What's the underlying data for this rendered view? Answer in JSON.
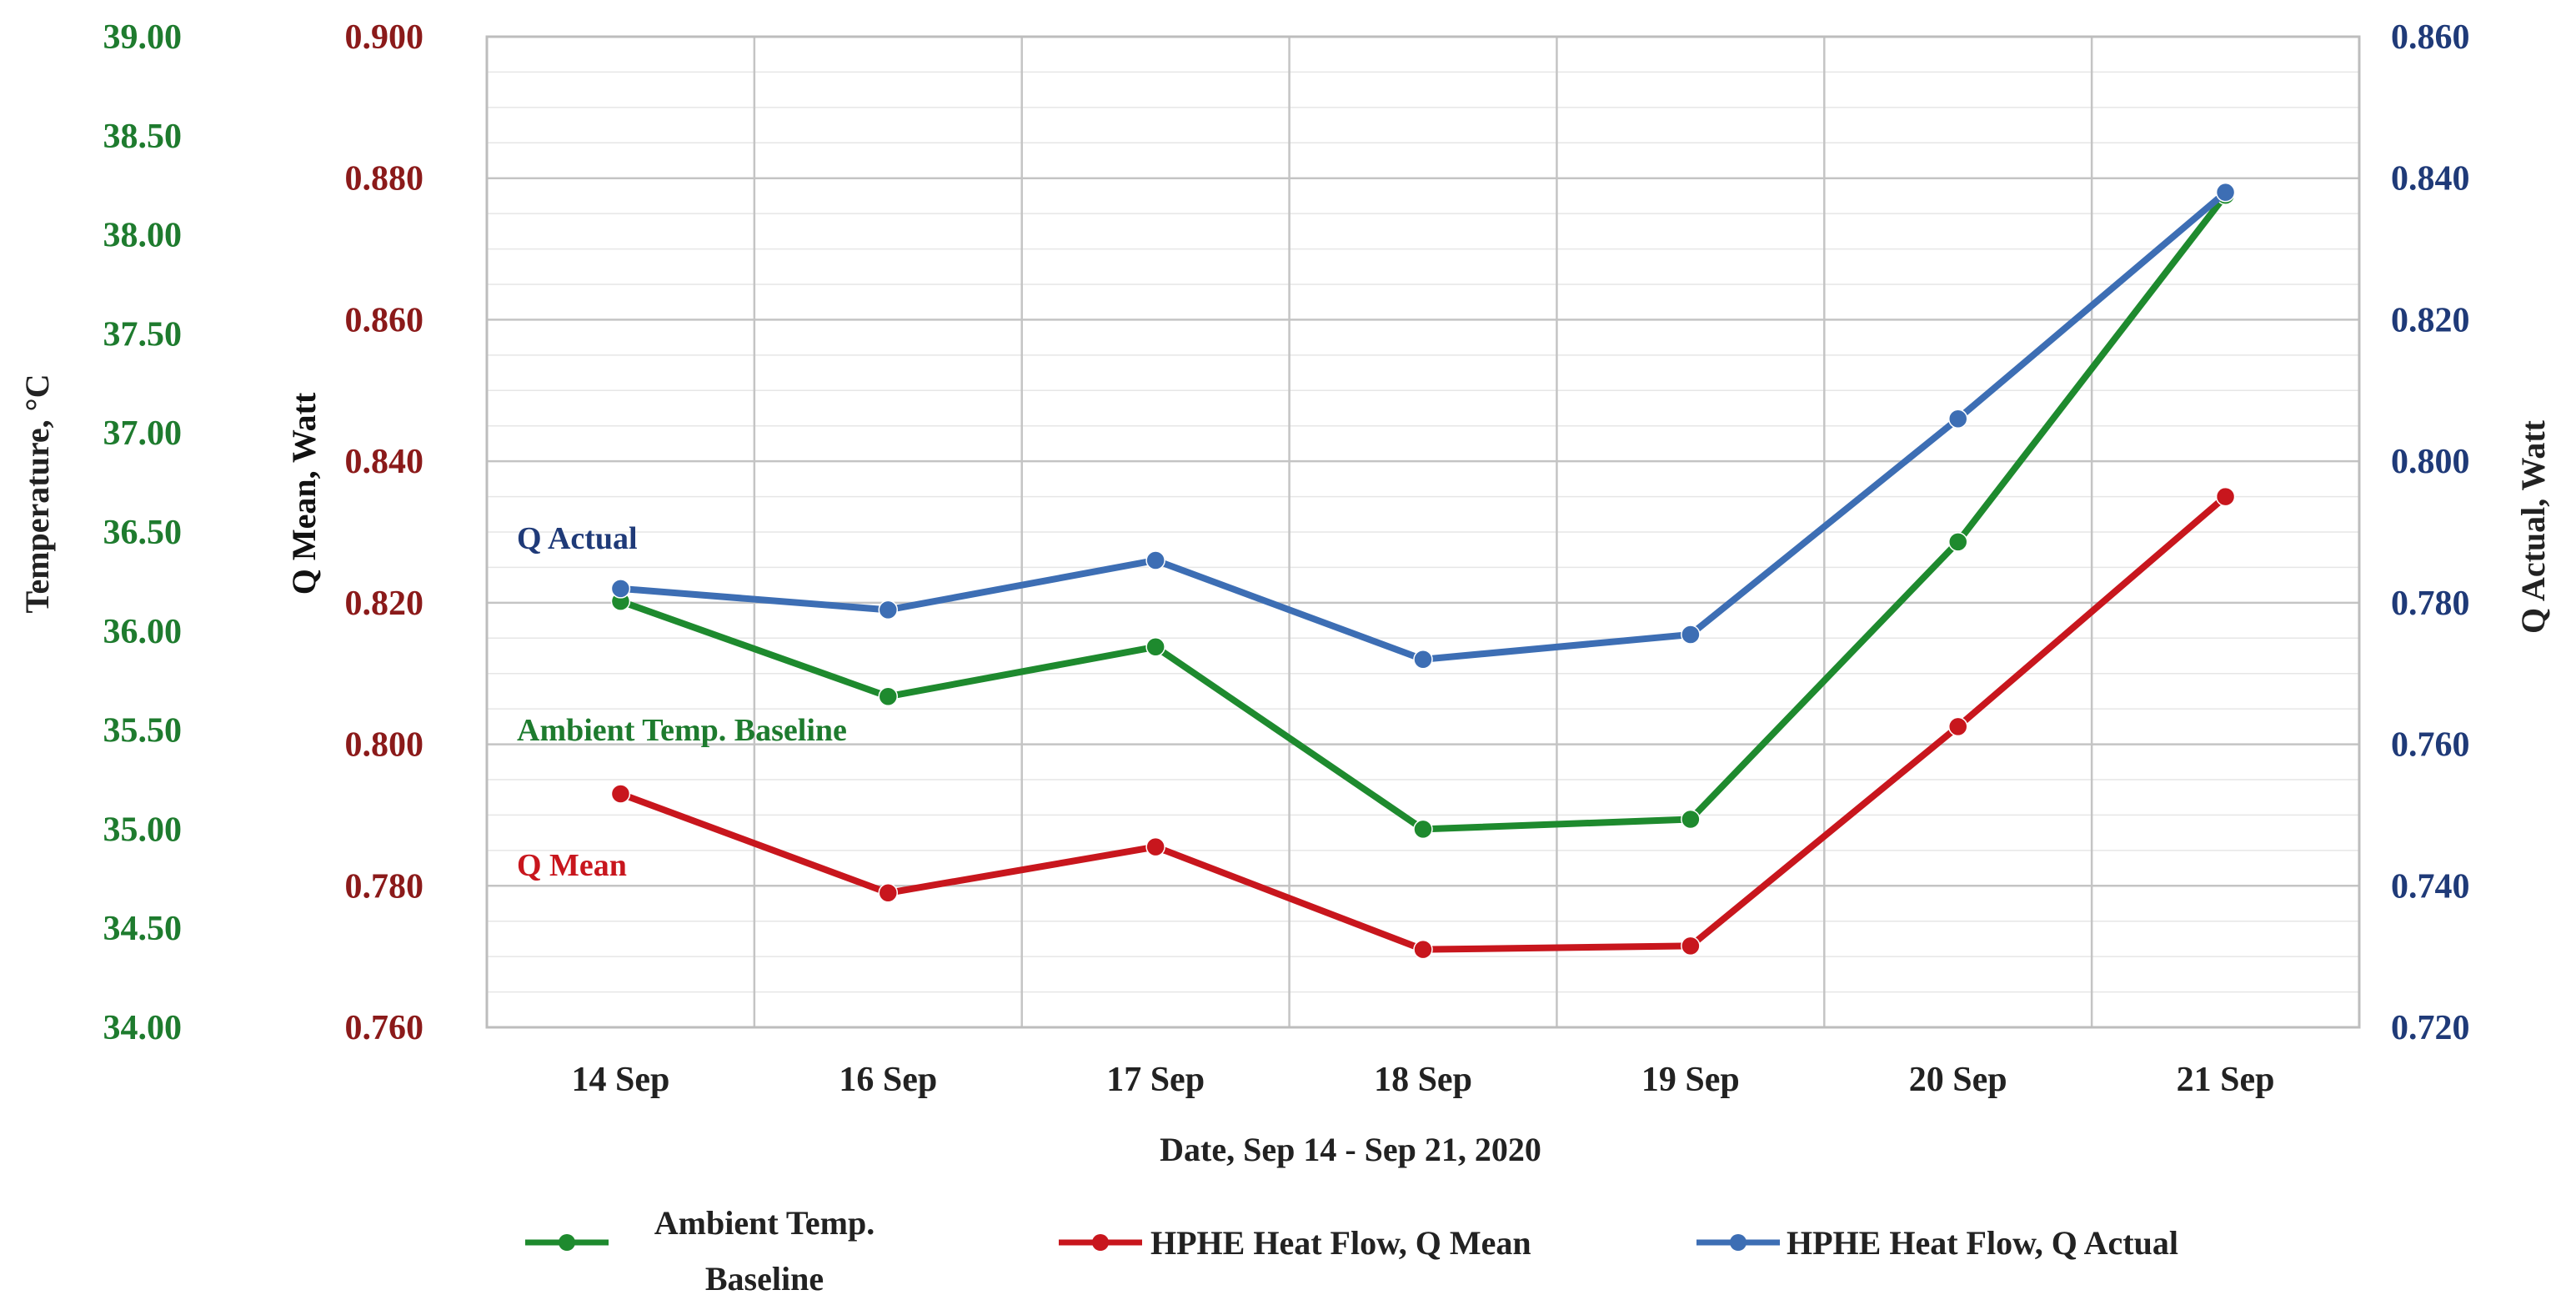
{
  "chart_data": {
    "type": "line",
    "title": "",
    "categories": [
      "14 Sep",
      "16 Sep",
      "17 Sep",
      "18 Sep",
      "19 Sep",
      "20 Sep",
      "21 Sep"
    ],
    "xlabel": "Date, Sep 14 - Sep 21, 2020",
    "axes": {
      "temp": {
        "label": "Temperature, °C",
        "min": 34.0,
        "max": 39.0,
        "step": 0.5,
        "decimals": 2,
        "color": "#1e7b2e"
      },
      "qmean": {
        "label": "Q Mean, Watt",
        "min": 0.76,
        "max": 0.9,
        "step": 0.02,
        "decimals": 3,
        "color": "#8b1a1a"
      },
      "qactual": {
        "label": "Q Actual, Watt",
        "min": 0.72,
        "max": 0.86,
        "step": 0.02,
        "decimals": 3,
        "color": "#1f3a78"
      }
    },
    "series": [
      {
        "name": "Ambient Temp. Baseline",
        "axis": "temp",
        "color": "#1e8a2e",
        "values": [
          36.15,
          35.67,
          35.92,
          35.0,
          35.05,
          36.45,
          38.2
        ]
      },
      {
        "name": "HPHE Heat Flow, Q Mean",
        "axis": "qmean",
        "color": "#c8161d",
        "values": [
          0.793,
          0.779,
          0.7855,
          0.771,
          0.7715,
          0.8025,
          0.835
        ]
      },
      {
        "name": "HPHE Heat Flow, Q Actual",
        "axis": "qactual",
        "color": "#3d6eb4",
        "values": [
          0.782,
          0.779,
          0.786,
          0.772,
          0.7755,
          0.806,
          0.838
        ]
      }
    ],
    "annotations": [
      {
        "text": "Q Actual",
        "color": "#1f3a78"
      },
      {
        "text": "Ambient Temp. Baseline",
        "color": "#1e7b2e"
      },
      {
        "text": "Q Mean",
        "color": "#c8161d"
      }
    ],
    "legend": {
      "position": "bottom",
      "items": [
        {
          "line1": "Ambient Temp.",
          "line2": "Baseline"
        },
        {
          "line1": "HPHE Heat Flow, Q Mean",
          "line2": ""
        },
        {
          "line1": "HPHE Heat Flow, Q Actual",
          "line2": ""
        }
      ]
    },
    "grid": true
  }
}
